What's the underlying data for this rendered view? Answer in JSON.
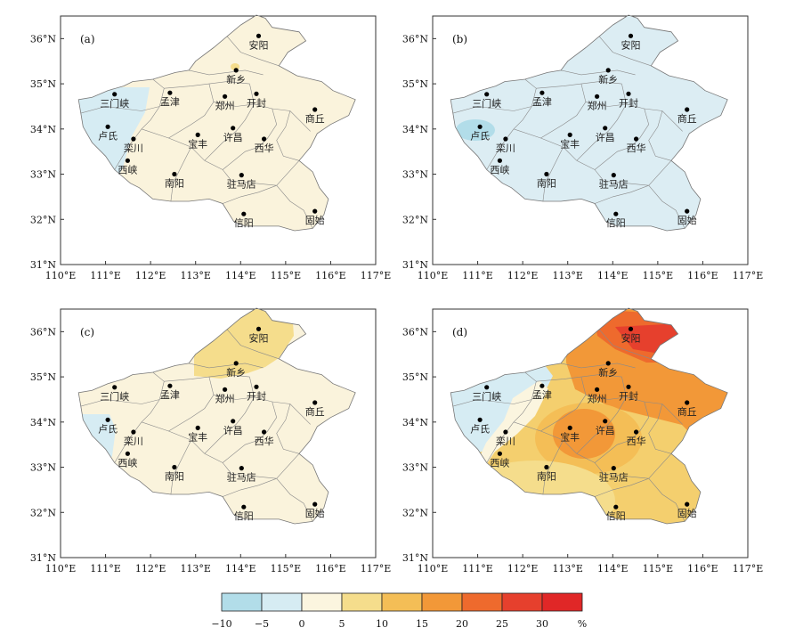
{
  "x_ticks": [
    "110°E",
    "111°E",
    "112°E",
    "113°E",
    "114°E",
    "115°E",
    "116°E",
    "117°E"
  ],
  "y_ticks": [
    "31°N",
    "32°N",
    "33°N",
    "34°N",
    "35°N",
    "36°N"
  ],
  "panels": [
    {
      "label": "(a)",
      "region_fill": "#faf3dc"
    },
    {
      "label": "(b)",
      "region_fill": "#dcedf3"
    },
    {
      "label": "(c)",
      "region_fill": "#faf3dc"
    },
    {
      "label": "(d)",
      "region_fill": "#f4cf6e"
    }
  ],
  "cities": [
    {
      "name": "安阳",
      "lon": 114.4,
      "lat": 36.06
    },
    {
      "name": "新乡",
      "lon": 113.9,
      "lat": 35.3
    },
    {
      "name": "三门峡",
      "lon": 111.2,
      "lat": 34.77
    },
    {
      "name": "孟津",
      "lon": 112.43,
      "lat": 34.8
    },
    {
      "name": "郑州",
      "lon": 113.65,
      "lat": 34.72
    },
    {
      "name": "开封",
      "lon": 114.35,
      "lat": 34.78
    },
    {
      "name": "商丘",
      "lon": 115.65,
      "lat": 34.43
    },
    {
      "name": "卢氏",
      "lon": 111.05,
      "lat": 34.05
    },
    {
      "name": "栾川",
      "lon": 111.62,
      "lat": 33.78
    },
    {
      "name": "宝丰",
      "lon": 113.05,
      "lat": 33.87
    },
    {
      "name": "许昌",
      "lon": 113.83,
      "lat": 34.02
    },
    {
      "name": "西华",
      "lon": 114.52,
      "lat": 33.78
    },
    {
      "name": "西峡",
      "lon": 111.49,
      "lat": 33.3
    },
    {
      "name": "南阳",
      "lon": 112.53,
      "lat": 33.0
    },
    {
      "name": "驻马店",
      "lon": 114.02,
      "lat": 32.98
    },
    {
      "name": "信阳",
      "lon": 114.07,
      "lat": 32.12
    },
    {
      "name": "固始",
      "lon": 115.65,
      "lat": 32.18
    }
  ],
  "legend": {
    "unit": "%",
    "colors": [
      "#b2dde9",
      "#d6ecf3",
      "#fbf5df",
      "#f5dd8c",
      "#f4be56",
      "#f29838",
      "#ee6a2d",
      "#e6402d",
      "#e02727"
    ],
    "tick_labels": [
      "−10",
      "−5",
      "0",
      "5",
      "10",
      "15",
      "20",
      "25",
      "30"
    ]
  }
}
